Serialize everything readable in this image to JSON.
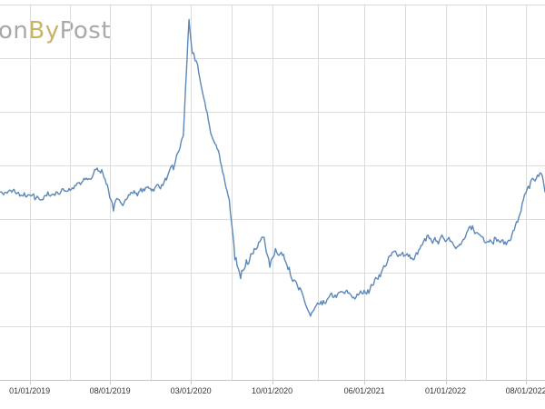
{
  "logo": {
    "part1": "on",
    "part2": "By",
    "part3": "Post"
  },
  "colors": {
    "line": "#5b88b8",
    "grid": "#dcdcdc",
    "background": "#ffffff",
    "logo_gray": "#a7a9ac",
    "logo_gold": "#c9b36b"
  },
  "chart_data": {
    "type": "line",
    "title": "",
    "xlabel": "",
    "ylabel": "",
    "x_tick_labels": [
      "01/01/2019",
      "08/01/2019",
      "03/01/2020",
      "10/01/2020",
      "06/01/2021",
      "01/01/2022",
      "08/01/2022"
    ],
    "x_range": [
      "2018-10-15",
      "2022-09-20"
    ],
    "y_range": [
      0,
      100
    ],
    "y_axis_labels_visible": false,
    "grid": true,
    "series": [
      {
        "x": [
          "2018-10-15",
          "2018-11-15",
          "2018-12-15",
          "2019-01-15",
          "2019-02-15",
          "2019-03-15",
          "2019-04-15",
          "2019-05-15",
          "2019-06-15",
          "2019-06-25",
          "2019-07-10",
          "2019-07-25",
          "2019-08-10",
          "2019-08-25",
          "2019-09-10",
          "2019-09-25",
          "2019-10-15",
          "2019-11-15",
          "2019-12-15",
          "2020-01-15",
          "2020-02-10",
          "2020-02-25",
          "2020-03-05",
          "2020-03-12",
          "2020-03-25",
          "2020-04-10",
          "2020-04-25",
          "2020-05-15",
          "2020-06-10",
          "2020-06-25",
          "2020-07-10",
          "2020-07-25",
          "2020-08-15",
          "2020-09-10",
          "2020-09-25",
          "2020-10-10",
          "2020-10-25",
          "2020-11-15",
          "2020-12-10",
          "2021-01-10",
          "2021-02-10",
          "2021-03-10",
          "2021-04-10",
          "2021-05-10",
          "2021-06-10",
          "2021-07-10",
          "2021-08-10",
          "2021-09-10",
          "2021-10-10",
          "2021-11-10",
          "2021-12-10",
          "2022-01-10",
          "2022-02-10",
          "2022-03-10",
          "2022-04-10",
          "2022-05-10",
          "2022-06-10",
          "2022-07-10",
          "2022-07-25",
          "2022-08-10",
          "2022-08-25",
          "2022-09-10",
          "2022-09-20"
        ],
        "y": [
          50,
          50,
          49,
          48,
          49,
          50,
          51,
          52,
          54,
          56,
          56,
          52,
          45,
          48,
          48,
          50,
          50,
          51,
          52,
          56,
          65,
          96,
          87,
          85,
          80,
          72,
          65,
          60,
          48,
          32,
          27,
          32,
          35,
          38,
          30,
          35,
          34,
          30,
          24,
          17,
          20,
          22,
          23,
          22,
          24,
          28,
          33,
          34,
          32,
          37,
          37,
          38,
          36,
          40,
          38,
          38,
          36,
          42,
          48,
          51,
          53,
          55,
          50
        ]
      }
    ]
  }
}
